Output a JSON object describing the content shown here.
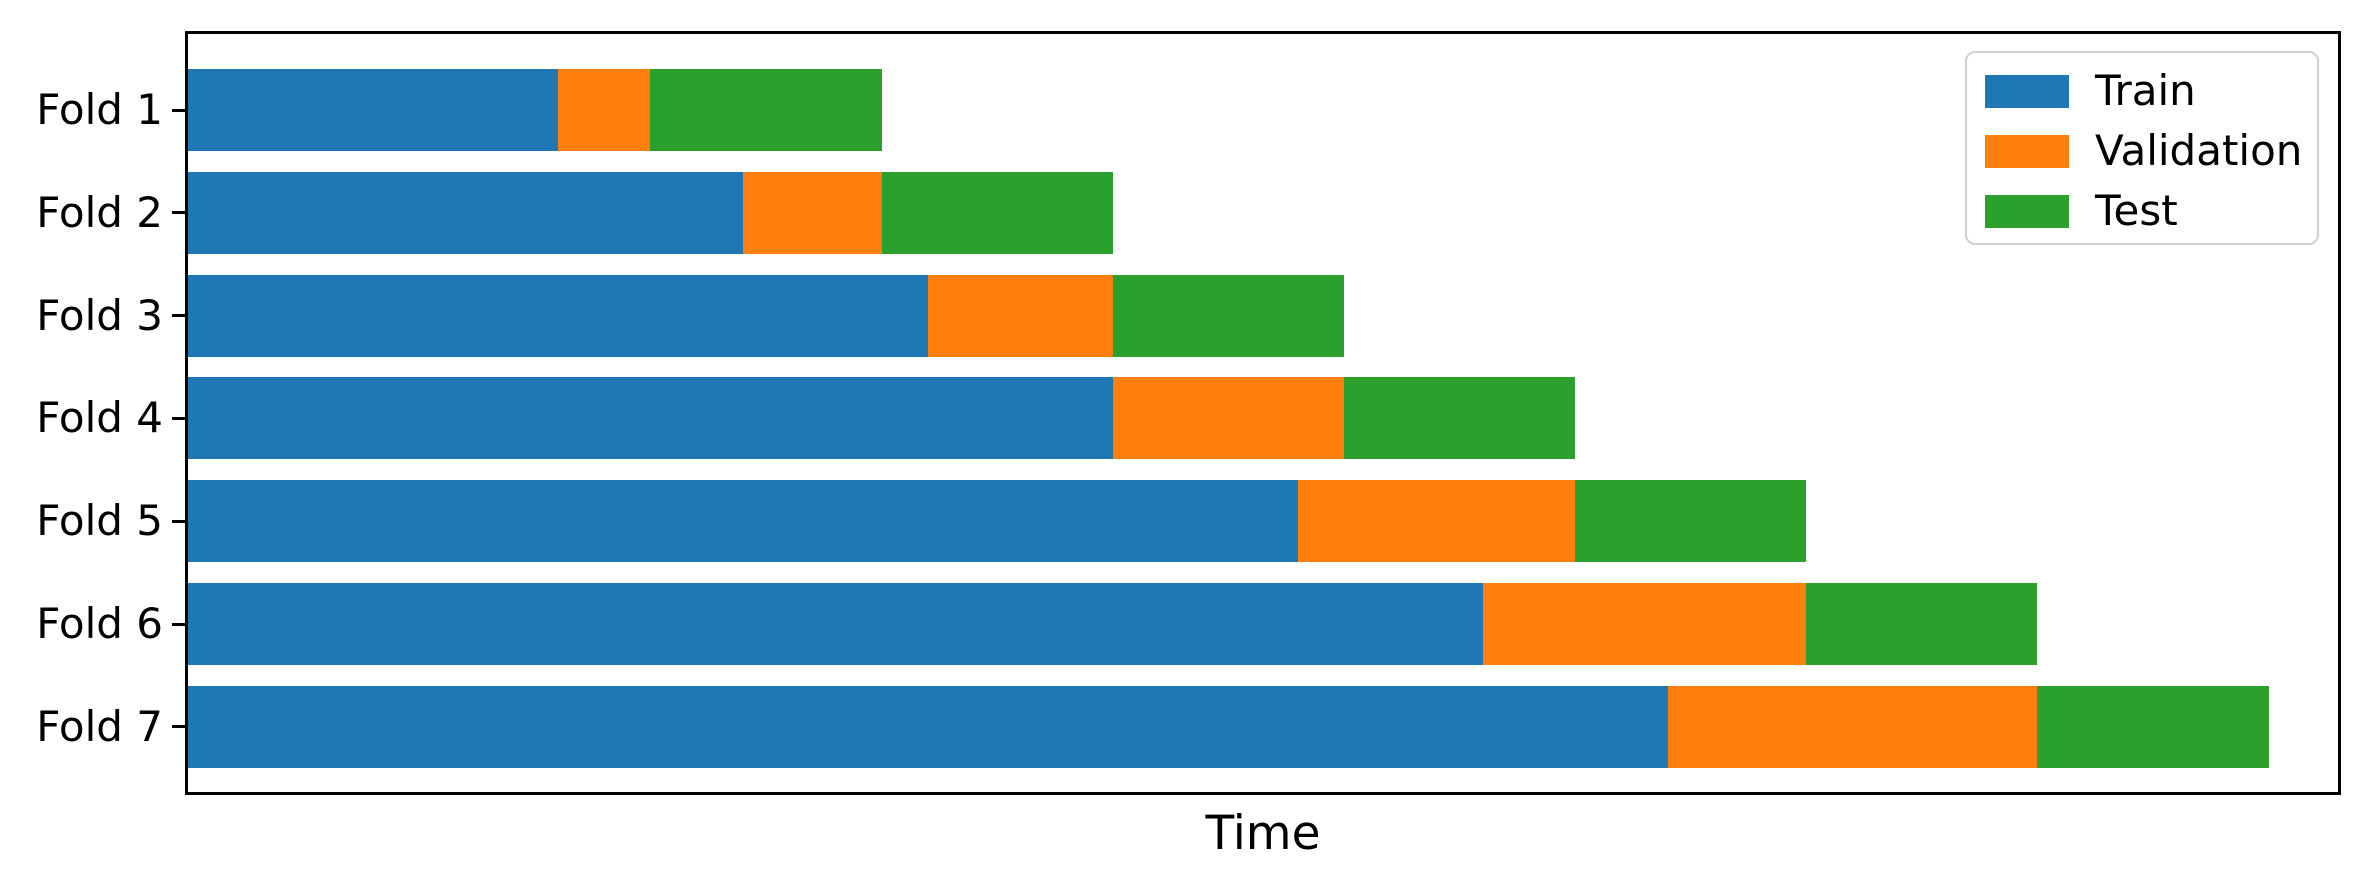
{
  "chart_data": {
    "type": "bar",
    "subtype": "horizontal-stacked",
    "title": "",
    "xlabel": "Time",
    "ylabel": "",
    "categories": [
      "Fold 1",
      "Fold 2",
      "Fold 3",
      "Fold 4",
      "Fold 5",
      "Fold 6",
      "Fold 7"
    ],
    "series": [
      {
        "name": "Train",
        "color": "#1f77b4",
        "values": [
          16,
          24,
          32,
          40,
          48,
          56,
          64
        ]
      },
      {
        "name": "Validation",
        "color": "#ff7f0e",
        "values": [
          4,
          6,
          8,
          10,
          12,
          14,
          16
        ]
      },
      {
        "name": "Test",
        "color": "#2ca02c",
        "values": [
          10,
          10,
          10,
          10,
          10,
          10,
          10
        ]
      }
    ],
    "xlim": [
      0,
      93
    ],
    "x_tick_labels": [],
    "grid": false,
    "legend": {
      "position": "upper right",
      "entries": [
        "Train",
        "Validation",
        "Test"
      ],
      "border_color": "#cfcfcf",
      "background": "#ffffff"
    },
    "axis_color": "#000000",
    "background": "#ffffff"
  }
}
